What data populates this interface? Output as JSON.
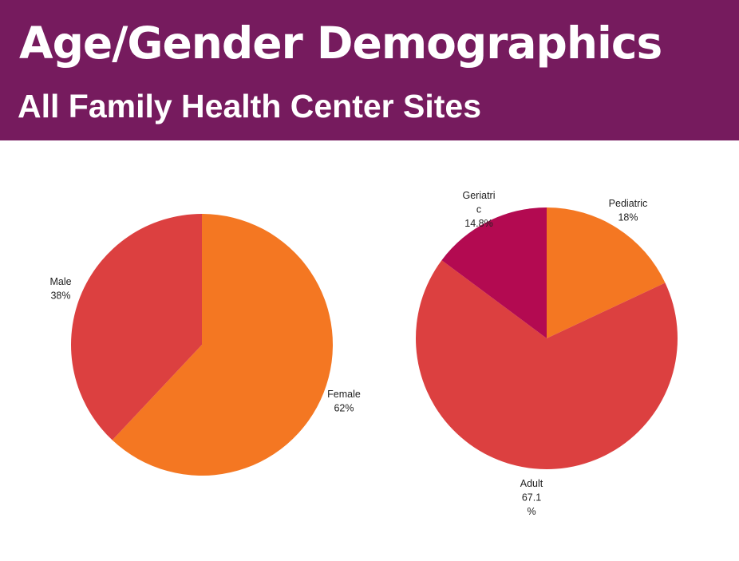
{
  "header": {
    "title": "Age/Gender Demographics",
    "subtitle": "All Family Health Center Sites",
    "background": "#761b5e"
  },
  "chart_data": [
    {
      "type": "pie",
      "title": "",
      "slices": [
        {
          "label": "Female",
          "value": 62,
          "display": "62%",
          "color": "#f47722"
        },
        {
          "label": "Male",
          "value": 38,
          "display": "38%",
          "color": "#dc4040"
        }
      ]
    },
    {
      "type": "pie",
      "title": "",
      "slices": [
        {
          "label": "Pediatric",
          "value": 18,
          "display": "18%",
          "color": "#f47722"
        },
        {
          "label": "Adult",
          "value": 67.1,
          "display": "67.1%",
          "color": "#dc4040"
        },
        {
          "label": "Geriatric",
          "value": 14.8,
          "display": "14.8%",
          "color": "#b30a51"
        }
      ]
    }
  ]
}
